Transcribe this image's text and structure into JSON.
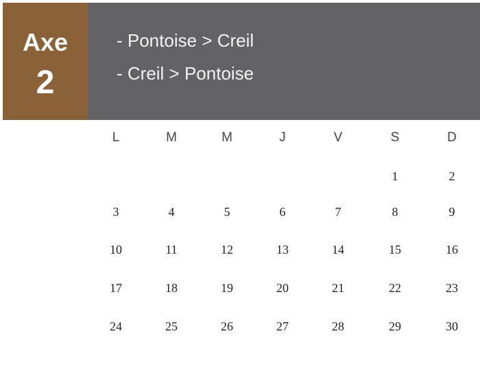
{
  "badge": {
    "label": "Axe",
    "number": "2",
    "color": "#8b6238"
  },
  "banner": {
    "lines": [
      "- Pontoise > Creil",
      "- Creil > Pontoise"
    ],
    "color": "#636365"
  },
  "calendar": {
    "weekdays": [
      "L",
      "M",
      "M",
      "J",
      "V",
      "S",
      "D"
    ],
    "weeks": [
      [
        "",
        "",
        "",
        "",
        "",
        "1",
        "2"
      ],
      [
        "3",
        "4",
        "5",
        "6",
        "7",
        "8",
        "9"
      ],
      [
        "10",
        "11",
        "12",
        "13",
        "14",
        "15",
        "16"
      ],
      [
        "17",
        "18",
        "19",
        "20",
        "21",
        "22",
        "23"
      ],
      [
        "24",
        "25",
        "26",
        "27",
        "28",
        "29",
        "30"
      ]
    ]
  }
}
